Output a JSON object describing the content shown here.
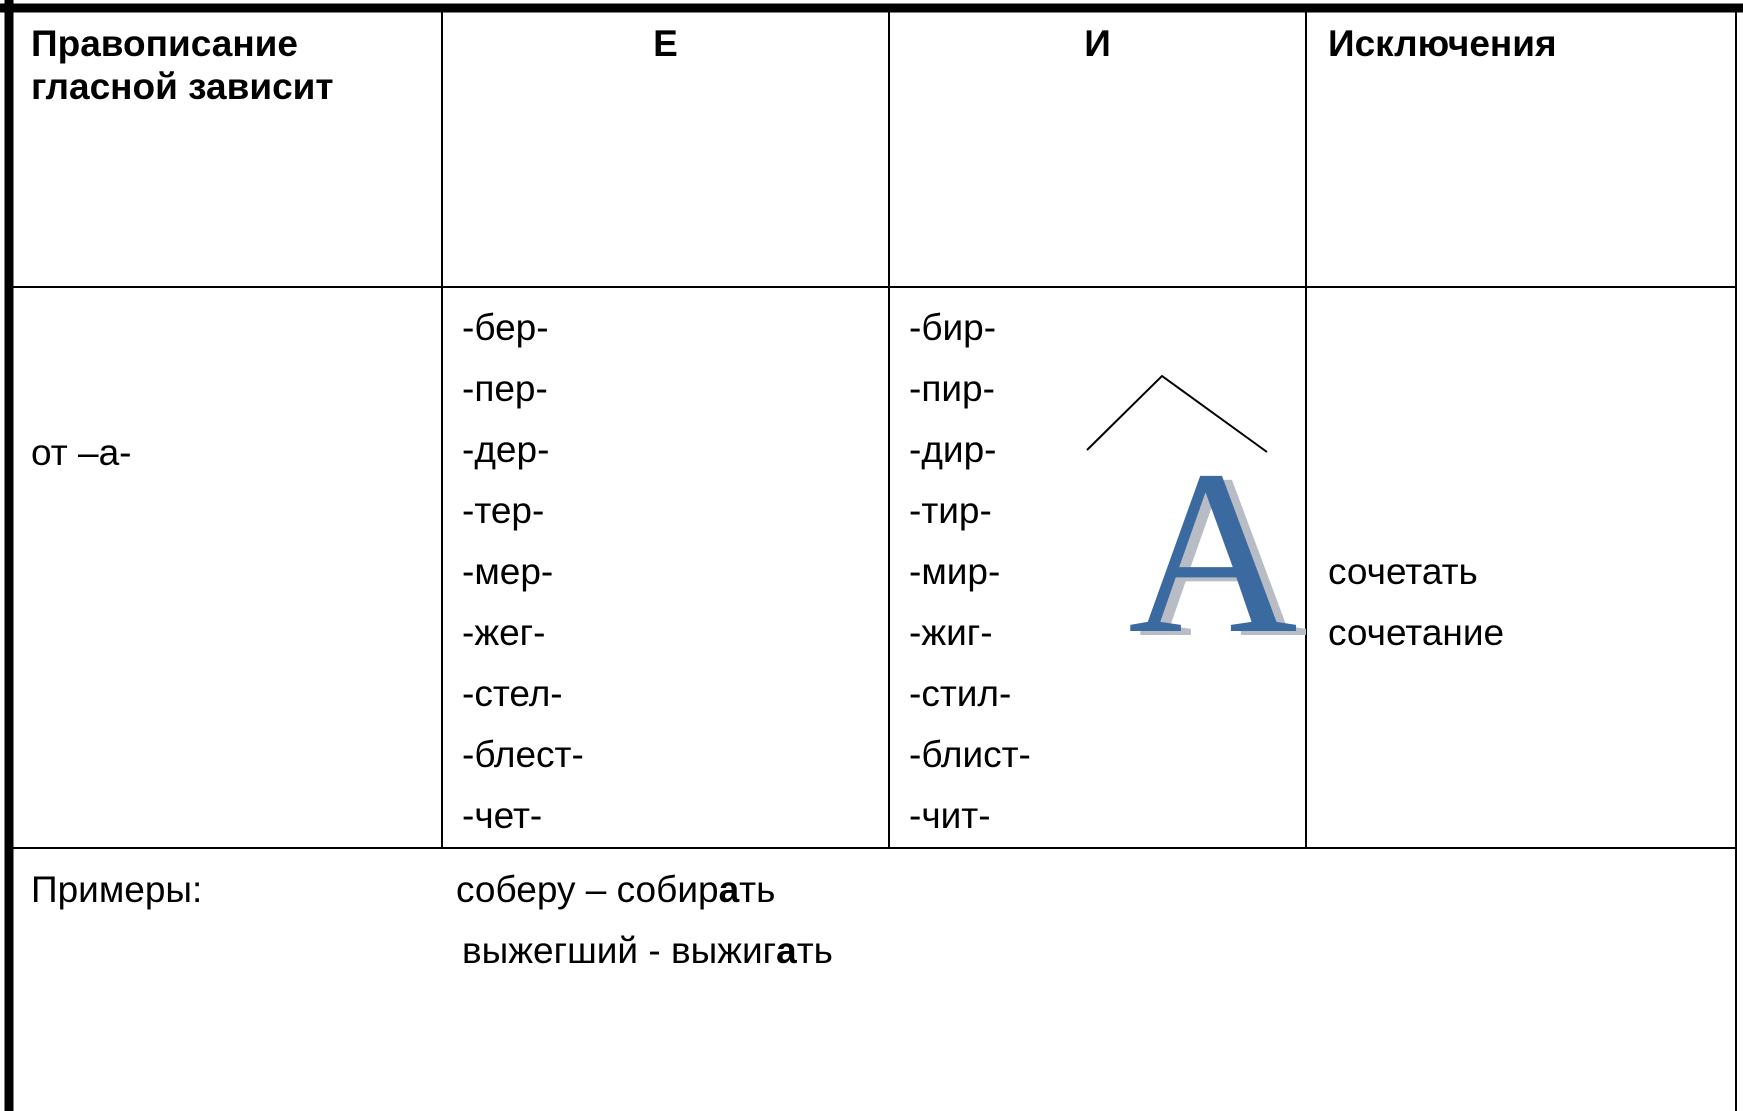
{
  "table": {
    "header": [
      "Правописание гласной зависит",
      "Е",
      "И",
      "Исключения"
    ],
    "rows": [
      {
        "condition": "от –а-",
        "e": [
          "-бер-",
          "-пер-",
          "-дер-",
          "-тер-",
          "-мер-",
          "-жег-",
          "-стел-",
          "-блест-",
          "-чет-"
        ],
        "i": [
          "-бир-",
          "-пир-",
          "-дир-",
          "-тир-",
          "-мир-",
          "-жиг-",
          "-стил-",
          "-блист-",
          "-чит-"
        ],
        "exceptions": [
          "сочетать",
          "сочетание"
        ]
      }
    ],
    "examples": {
      "label": "Примеры:",
      "lines": [
        [
          "соберу – собир",
          "а",
          "ть"
        ],
        [
          "выжегший - выжиг",
          "а",
          "ть"
        ]
      ]
    }
  },
  "decoration": {
    "letter": "A"
  }
}
